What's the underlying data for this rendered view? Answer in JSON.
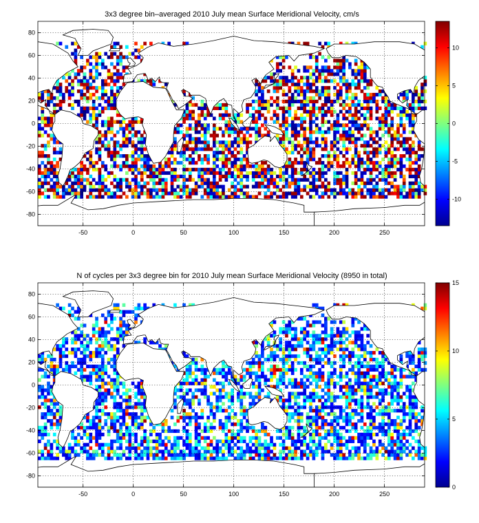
{
  "chart_data": [
    {
      "type": "heatmap",
      "title": "3x3 degree bin–averaged 2010 July mean Surface Meridional Velocity, cm/s",
      "xlim": [
        -95,
        290
      ],
      "ylim": [
        -90,
        90
      ],
      "x_ticks": [
        -50,
        0,
        50,
        100,
        150,
        200,
        250
      ],
      "x_tick_labels": [
        "-50",
        "0",
        "50",
        "100",
        "150",
        "200",
        "250"
      ],
      "y_ticks": [
        80,
        60,
        40,
        20,
        0,
        -20,
        -40,
        -60,
        -80
      ],
      "y_tick_labels": [
        "80",
        "60",
        "40",
        "20",
        "0",
        "-20",
        "-40",
        "-60",
        "-80"
      ],
      "grid": true,
      "bin_size_deg": 3,
      "colormap": "jet",
      "colorbar": {
        "range": [
          -13.5,
          13.5
        ],
        "ticks": [
          10,
          5,
          0,
          -5,
          -10
        ],
        "tick_labels": [
          "10",
          "5",
          "0",
          "-5",
          "-10"
        ]
      },
      "bin_values_note_text": "",
      "seed": 7
    },
    {
      "type": "heatmap",
      "title": "N of cycles per 3x3 degree bin for 2010 July mean Surface Meridional Velocity (8950 in total)",
      "xlim": [
        -95,
        290
      ],
      "ylim": [
        -90,
        90
      ],
      "x_ticks": [
        -50,
        0,
        50,
        100,
        150,
        200,
        250
      ],
      "x_tick_labels": [
        "-50",
        "0",
        "50",
        "100",
        "150",
        "200",
        "250"
      ],
      "y_ticks": [
        80,
        60,
        40,
        20,
        0,
        -20,
        -40,
        -60,
        -80
      ],
      "y_tick_labels": [
        "80",
        "60",
        "40",
        "20",
        "0",
        "-20",
        "-40",
        "-60",
        "-80"
      ],
      "grid": true,
      "bin_size_deg": 3,
      "colormap": "jet",
      "colorbar": {
        "range": [
          0,
          15
        ],
        "ticks": [
          15,
          10,
          5,
          0
        ],
        "tick_labels": [
          "15",
          "10",
          "5",
          "0"
        ]
      },
      "total_cycles": 8950,
      "seed": 11
    }
  ]
}
